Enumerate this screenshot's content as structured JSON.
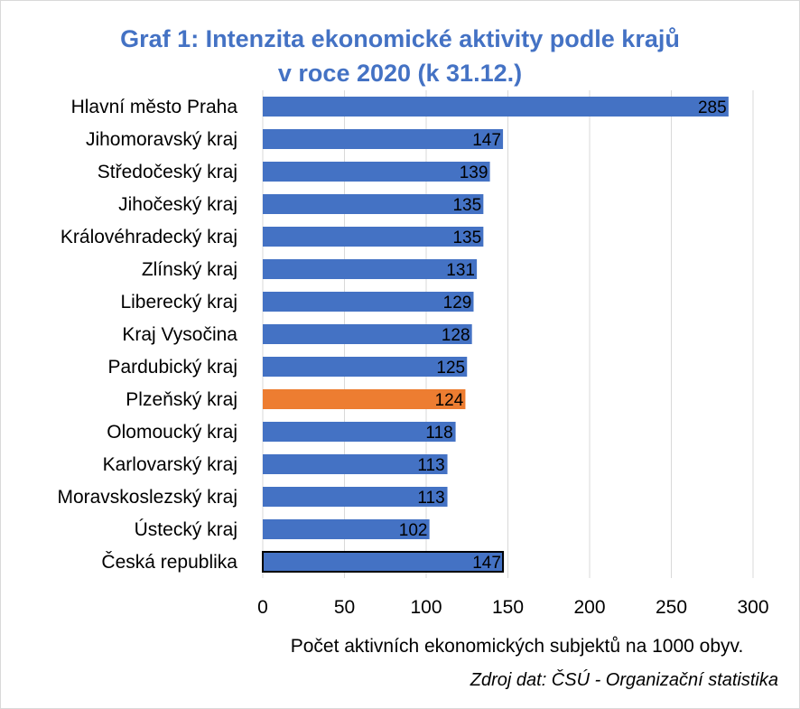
{
  "title_line1": "Graf 1: Intenzita ekonomické aktivity podle krajů",
  "title_line2": "v roce 2020 (k 31.12.)",
  "source": "Zdroj dat: ČSÚ - Organizační statistika",
  "colors": {
    "default": "#4472c4",
    "highlight": "#ed7d31",
    "title": "#4472c4",
    "grid": "#d9d9d9"
  },
  "chart_data": {
    "type": "bar",
    "orientation": "horizontal",
    "categories": [
      "Hlavní město Praha",
      "Jihomoravský kraj",
      "Středočeský kraj",
      "Jihočeský kraj",
      "Královéhradecký kraj",
      "Zlínský kraj",
      "Liberecký kraj",
      "Kraj Vysočina",
      "Pardubický kraj",
      "Plzeňský kraj",
      "Olomoucký kraj",
      "Karlovarský kraj",
      "Moravskoslezský kraj",
      "Ústecký kraj",
      "Česká republika"
    ],
    "values": [
      285,
      147,
      139,
      135,
      135,
      131,
      129,
      128,
      125,
      124,
      118,
      113,
      113,
      102,
      147
    ],
    "highlighted_category": "Plzeňský kraj",
    "outlined_category": "Česká republika",
    "xlabel": "Počet aktivních ekonomických subjektů na 1000 obyv.",
    "ylabel": "",
    "xlim": [
      0,
      300
    ],
    "xticks": [
      "0",
      "50",
      "100",
      "150",
      "200",
      "250",
      "300"
    ],
    "grid": true,
    "legend": "none"
  }
}
